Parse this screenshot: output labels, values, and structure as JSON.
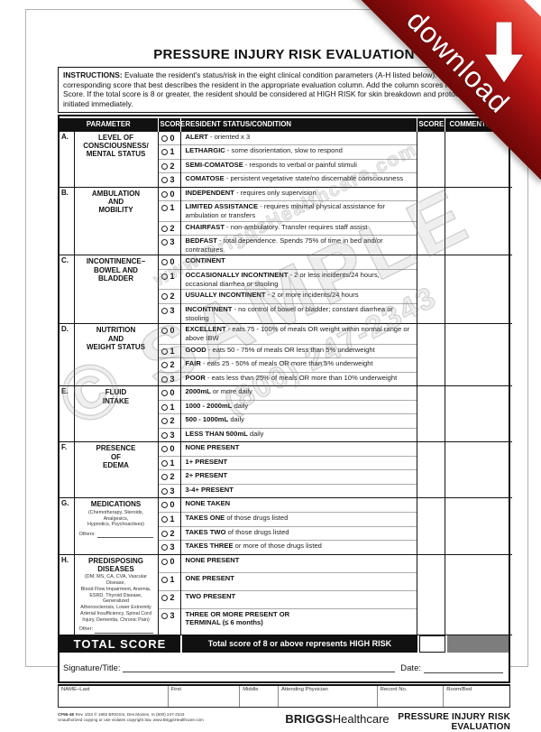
{
  "ribbon": {
    "label": "download",
    "color": "#b01313"
  },
  "title": "PRESSURE INJURY RISK EVALUATION",
  "instructions": {
    "lead": "INSTRUCTIONS:",
    "text": "Evaluate the resident's status/risk in the eight clinical condition parameters (A-H listed below). Select the corresponding score that best describes the resident in the appropriate evaluation column. Add the column scores to obtain the Total Score. If the total score is 8 or greater, the resident should be considered at HIGH RISK for skin breakdown and protocol should be initiated immediately."
  },
  "table": {
    "headers": {
      "parameter": "PARAMETER",
      "score": "SCORE",
      "status": "RESIDENT STATUS/CONDITION",
      "score2": "SCORE",
      "comments": "COMMENTS"
    },
    "rows": [
      {
        "letter": "A.",
        "parameter": "LEVEL OF\nCONSCIOUSNESS/\nMENTAL STATUS",
        "options": [
          {
            "score": "0",
            "term": "ALERT",
            "desc": "- oriented x 3"
          },
          {
            "score": "1",
            "term": "LETHARGIC",
            "desc": "- some disorientation, slow to respond"
          },
          {
            "score": "2",
            "term": "SEMI-COMATOSE",
            "desc": "- responds to verbal or painful stimuli"
          },
          {
            "score": "3",
            "term": "COMATOSE",
            "desc": "- persistent vegetative state/no discernable consciousness"
          }
        ]
      },
      {
        "letter": "B.",
        "parameter": "AMBULATION\nAND\nMOBILITY",
        "options": [
          {
            "score": "0",
            "term": "INDEPENDENT",
            "desc": "- requires only supervision"
          },
          {
            "score": "1",
            "term": "LIMITED ASSISTANCE",
            "desc": "- requires minimal physical assistance for ambulation or transfers"
          },
          {
            "score": "2",
            "term": "CHAIRFAST",
            "desc": "- non-ambulatory. Transfer requires staff assist"
          },
          {
            "score": "3",
            "term": "BEDFAST",
            "desc": "- total dependence. Spends 75% of time in bed and/or contractures"
          }
        ]
      },
      {
        "letter": "C.",
        "parameter": "INCONTINENCE–\nBOWEL AND\nBLADDER",
        "options": [
          {
            "score": "0",
            "term": "CONTINENT",
            "desc": ""
          },
          {
            "score": "1",
            "term": "OCCASIONALLY INCONTINENT",
            "desc": "- 2 or less incidents/24 hours, occasional diarrhea or stooling"
          },
          {
            "score": "2",
            "term": "USUALLY INCONTINENT",
            "desc": "- 2 or more incidents/24 hours"
          },
          {
            "score": "3",
            "term": "INCONTINENT",
            "desc": "- no control of bowel or bladder; constant diarrhea or stooling"
          }
        ]
      },
      {
        "letter": "D.",
        "parameter": "NUTRITION\nAND\nWEIGHT STATUS",
        "options": [
          {
            "score": "0",
            "term": "EXCELLENT",
            "desc": "- eats 75 - 100% of meals OR weight within normal range or above IBW"
          },
          {
            "score": "1",
            "term": "GOOD",
            "desc": "- eats 50 - 75% of meals OR less than 5% underweight"
          },
          {
            "score": "2",
            "term": "FAIR",
            "desc": "- eats 25 - 50% of meals OR more than 5% underweight"
          },
          {
            "score": "3",
            "term": "POOR",
            "desc": "- eats less than 25% of meals OR more than 10% underweight"
          }
        ]
      },
      {
        "letter": "E.",
        "parameter": "FLUID\nINTAKE",
        "options": [
          {
            "score": "0",
            "term": "2000mL",
            "desc": "or more daily"
          },
          {
            "score": "1",
            "term": "1000 - 2000mL",
            "desc": "daily"
          },
          {
            "score": "2",
            "term": "500 - 1000mL",
            "desc": "daily"
          },
          {
            "score": "3",
            "term": "LESS THAN 500mL",
            "desc": "daily"
          }
        ]
      },
      {
        "letter": "F.",
        "parameter": "PRESENCE\nOF\nEDEMA",
        "options": [
          {
            "score": "0",
            "term": "NONE PRESENT",
            "desc": ""
          },
          {
            "score": "1",
            "term": "1+ PRESENT",
            "desc": ""
          },
          {
            "score": "2",
            "term": "2+ PRESENT",
            "desc": ""
          },
          {
            "score": "3",
            "term": "3-4+ PRESENT",
            "desc": ""
          }
        ]
      },
      {
        "letter": "G.",
        "parameter": "MEDICATIONS",
        "small": "(Chemotherapy, Steroids, Analgesics,\nHypnotics, Psychoactives)",
        "other_label": "Others:",
        "options": [
          {
            "score": "0",
            "term": "NONE TAKEN",
            "desc": ""
          },
          {
            "score": "1",
            "term": "TAKES ONE",
            "desc": "of those drugs listed"
          },
          {
            "score": "2",
            "term": "TAKES TWO",
            "desc": "of those drugs listed"
          },
          {
            "score": "3",
            "term": "TAKES THREE",
            "desc": "or more of those drugs listed"
          }
        ]
      },
      {
        "letter": "H.",
        "parameter": "PREDISPOSING\nDISEASES",
        "small": "(DM, MS, CA, CVA, Vascular Disease,\nBlood Flow Impairment, Anemia,\nESRD, Thyroid Disease, Generalized\nAtherosclerosis, Lower Extremity\nArterial Insufficiency, Spinal Cord\nInjury, Dementia, Chronic Pain)",
        "other_label": "Other:",
        "options": [
          {
            "score": "0",
            "term": "NONE PRESENT",
            "desc": ""
          },
          {
            "score": "1",
            "term": "ONE PRESENT",
            "desc": ""
          },
          {
            "score": "2",
            "term": "TWO PRESENT",
            "desc": ""
          },
          {
            "score": "3",
            "term": "THREE OR MORE PRESENT OR\nTERMINAL (≤ 6 months)",
            "desc": ""
          }
        ]
      }
    ]
  },
  "total": {
    "label": "TOTAL SCORE",
    "message": "Total score of 8 or above represents HIGH RISK"
  },
  "signature": {
    "label": "Signature/Title:",
    "date_label": "Date:"
  },
  "name_row": [
    "NAME–Last",
    "First",
    "Middle",
    "Attending Physician",
    "Record No.",
    "Room/Bed"
  ],
  "name_widths": [
    122,
    80,
    43,
    110,
    74,
    73
  ],
  "footer": {
    "code": "CF56-4E",
    "left1": " Rev. 3/23  © 1992 BRIGGS, Des Moines, IA  (800) 247-2343",
    "left2": "Unauthorized copying or use violates copyright law.  www.BriggsHealthcare.com",
    "brand_bold": "BRIGGS",
    "brand_light": "Healthcare",
    "right": "PRESSURE INJURY RISK EVALUATION"
  },
  "watermark": {
    "big": "© SAMPLE",
    "phone": "(800) 247-2343",
    "site": "www.BriggsHealthcare.com"
  }
}
